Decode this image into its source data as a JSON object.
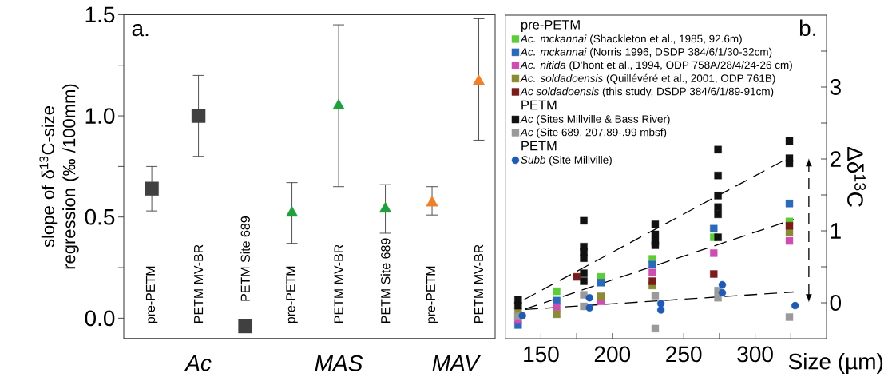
{
  "chart_data": [
    {
      "type": "scatter",
      "ylabel": "slope of δ$^{13}$C-size regression (‰ /100mm)",
      "annotations": [
        "a.",
        "Ac",
        "MAS",
        "MAV"
      ],
      "categories": [
        "pre-PETM",
        "PETM MV-BR",
        "PETM Site 689",
        "pre-PETM",
        "PETM MV-BR",
        "PETM Site 689",
        "pre-PETM",
        "PETM MV-BR"
      ],
      "ylim": [
        -0.1,
        1.5
      ],
      "yticks": [
        {
          "value": 0,
          "label": "0.0"
        },
        {
          "value": 0.25,
          "label": null
        },
        {
          "value": 0.5,
          "label": "0.5"
        },
        {
          "value": 0.75,
          "label": null
        },
        {
          "value": 1,
          "label": "1.0"
        },
        {
          "value": 1.25,
          "label": null
        },
        {
          "value": 1.5,
          "label": "1.5"
        }
      ],
      "series": [
        {
          "color": "#404040",
          "marker": "square",
          "values": [
            0.64,
            1.0,
            -0.04,
            null,
            null,
            null,
            null,
            null
          ],
          "errors": [
            [
              0.53,
              0.75
            ],
            [
              0.8,
              1.2
            ],
            null,
            null,
            null,
            null,
            null,
            null
          ]
        },
        {
          "color": "#1ea03c",
          "marker": "triangle",
          "values": [
            null,
            null,
            null,
            0.52,
            1.05,
            0.54,
            null,
            null
          ],
          "errors": [
            null,
            null,
            null,
            [
              0.37,
              0.67
            ],
            [
              0.65,
              1.45
            ],
            [
              0.42,
              0.66
            ],
            null,
            null
          ]
        },
        {
          "color": "#f07f2a",
          "marker": "triangle",
          "values": [
            null,
            null,
            null,
            null,
            null,
            null,
            0.57,
            1.17
          ],
          "errors": [
            null,
            null,
            null,
            null,
            null,
            null,
            [
              0.51,
              0.65
            ],
            [
              0.88,
              1.48
            ]
          ]
        }
      ]
    },
    {
      "type": "scatter",
      "xlabel": "Size (µm)",
      "ylabel": "Δδ$^{13}$C",
      "legend": "top left",
      "legend_title": "pre-PETM",
      "annotations": [
        "b.",
        "PETM",
        "PETM"
      ],
      "xlim": [
        125,
        350
      ],
      "xticks": [
        150,
        {
          "value": 175,
          "label": null
        },
        200,
        {
          "value": 225,
          "label": null
        },
        250,
        {
          "value": 275,
          "label": null
        },
        300,
        {
          "value": 325,
          "label": null
        }
      ],
      "ylim": [
        -0.5,
        4
      ],
      "yticks": [
        0,
        {
          "value": 0.5,
          "label": null
        },
        1,
        {
          "value": 1.5,
          "label": null
        },
        2,
        {
          "value": 2.5,
          "label": null
        },
        3,
        {
          "value": 3.5,
          "label": null
        }
      ],
      "series": [
        {
          "name": "*Ac. mckannai* (Shackleton et al., 1985, 92.6m)",
          "color": "#5ecb3a",
          "marker": "square",
          "x": [
            161,
            192,
            228,
            271,
            324
          ],
          "values": [
            0.16,
            0.36,
            0.61,
            0.91,
            1.13
          ]
        },
        {
          "name": "*Ac. mckannai* (Norris 1996, DSDP 384/6/1/30-32cm)",
          "color": "#2a6ab8",
          "marker": "square",
          "x": [
            134,
            161,
            192,
            228,
            271,
            324
          ],
          "values": [
            -0.31,
            0.03,
            0.28,
            0.53,
            1.03,
            1.38
          ]
        },
        {
          "name": "*Ac. nitida* (D'hont et al., 1994, ODP 758A/28/4/24-26 cm)",
          "color": "#cc4fb0",
          "marker": "square",
          "x": [
            134,
            161,
            192,
            228,
            271,
            324
          ],
          "values": [
            -0.24,
            -0.06,
            0.02,
            0.42,
            0.69,
            0.86
          ]
        },
        {
          "name": "*Ac. soldadoensis* (Quillévéré et al., 2001, ODP 761B)",
          "color": "#8c8a35",
          "marker": "square",
          "x": [
            134,
            161,
            192,
            228,
            324
          ],
          "values": [
            -0.12,
            -0.16,
            0.09,
            0.24,
            0.98
          ]
        },
        {
          "name": "*Ac soldadoensis* (this study, DSDP 384/6/1/89-91cm)",
          "color": "#7b1c1c",
          "marker": "square",
          "x": [
            175,
            228,
            271,
            324
          ],
          "values": [
            0.36,
            0.3,
            0.4,
            1.07
          ]
        },
        {
          "name": "*Ac* (Sites Millville & Bass River)",
          "color": "#111111",
          "marker": "square",
          "x": [
            134,
            134,
            180,
            180,
            180,
            180,
            180,
            180,
            230,
            230,
            230,
            230,
            274,
            274,
            274,
            274,
            274,
            274,
            324,
            324,
            324
          ],
          "values": [
            0.04,
            -0.04,
            1.14,
            0.78,
            0.71,
            0.62,
            0.41,
            0.3,
            1.09,
            0.95,
            0.85,
            0.8,
            2.13,
            1.77,
            1.49,
            1.33,
            1.23,
            0.91,
            2.25,
            2.01,
            1.94
          ]
        },
        {
          "name": "*Ac* (Site 689, 207.89-.99 mbsf)",
          "color": "#9a9a9a",
          "marker": "square",
          "x": [
            134,
            180,
            180,
            230,
            230,
            274,
            274,
            324
          ],
          "values": [
            -0.19,
            0.11,
            -0.05,
            0.1,
            -0.36,
            0.17,
            0.07,
            -0.2
          ]
        },
        {
          "name": "*Subb* (Site Millville)",
          "color": "#1f5bb5",
          "marker": "circle",
          "x": [
            137,
            184,
            184,
            234,
            234,
            277,
            277,
            328
          ],
          "values": [
            -0.18,
            0.07,
            -0.07,
            -0.01,
            -0.1,
            0.25,
            0.14,
            -0.04
          ]
        },
        {
          "type": "line",
          "color": "#000000",
          "line_style": "dashed",
          "marker": "none",
          "x": [
            134,
            322
          ],
          "values": [
            0.0,
            2.0
          ]
        },
        {
          "type": "line",
          "color": "#000000",
          "line_style": "dashed",
          "marker": "none",
          "x": [
            134,
            327
          ],
          "values": [
            -0.12,
            1.16
          ]
        },
        {
          "type": "line",
          "color": "#000000",
          "line_style": "dashed",
          "marker": "none",
          "x": [
            134,
            327
          ],
          "values": [
            -0.1,
            0.15
          ]
        }
      ]
    }
  ]
}
